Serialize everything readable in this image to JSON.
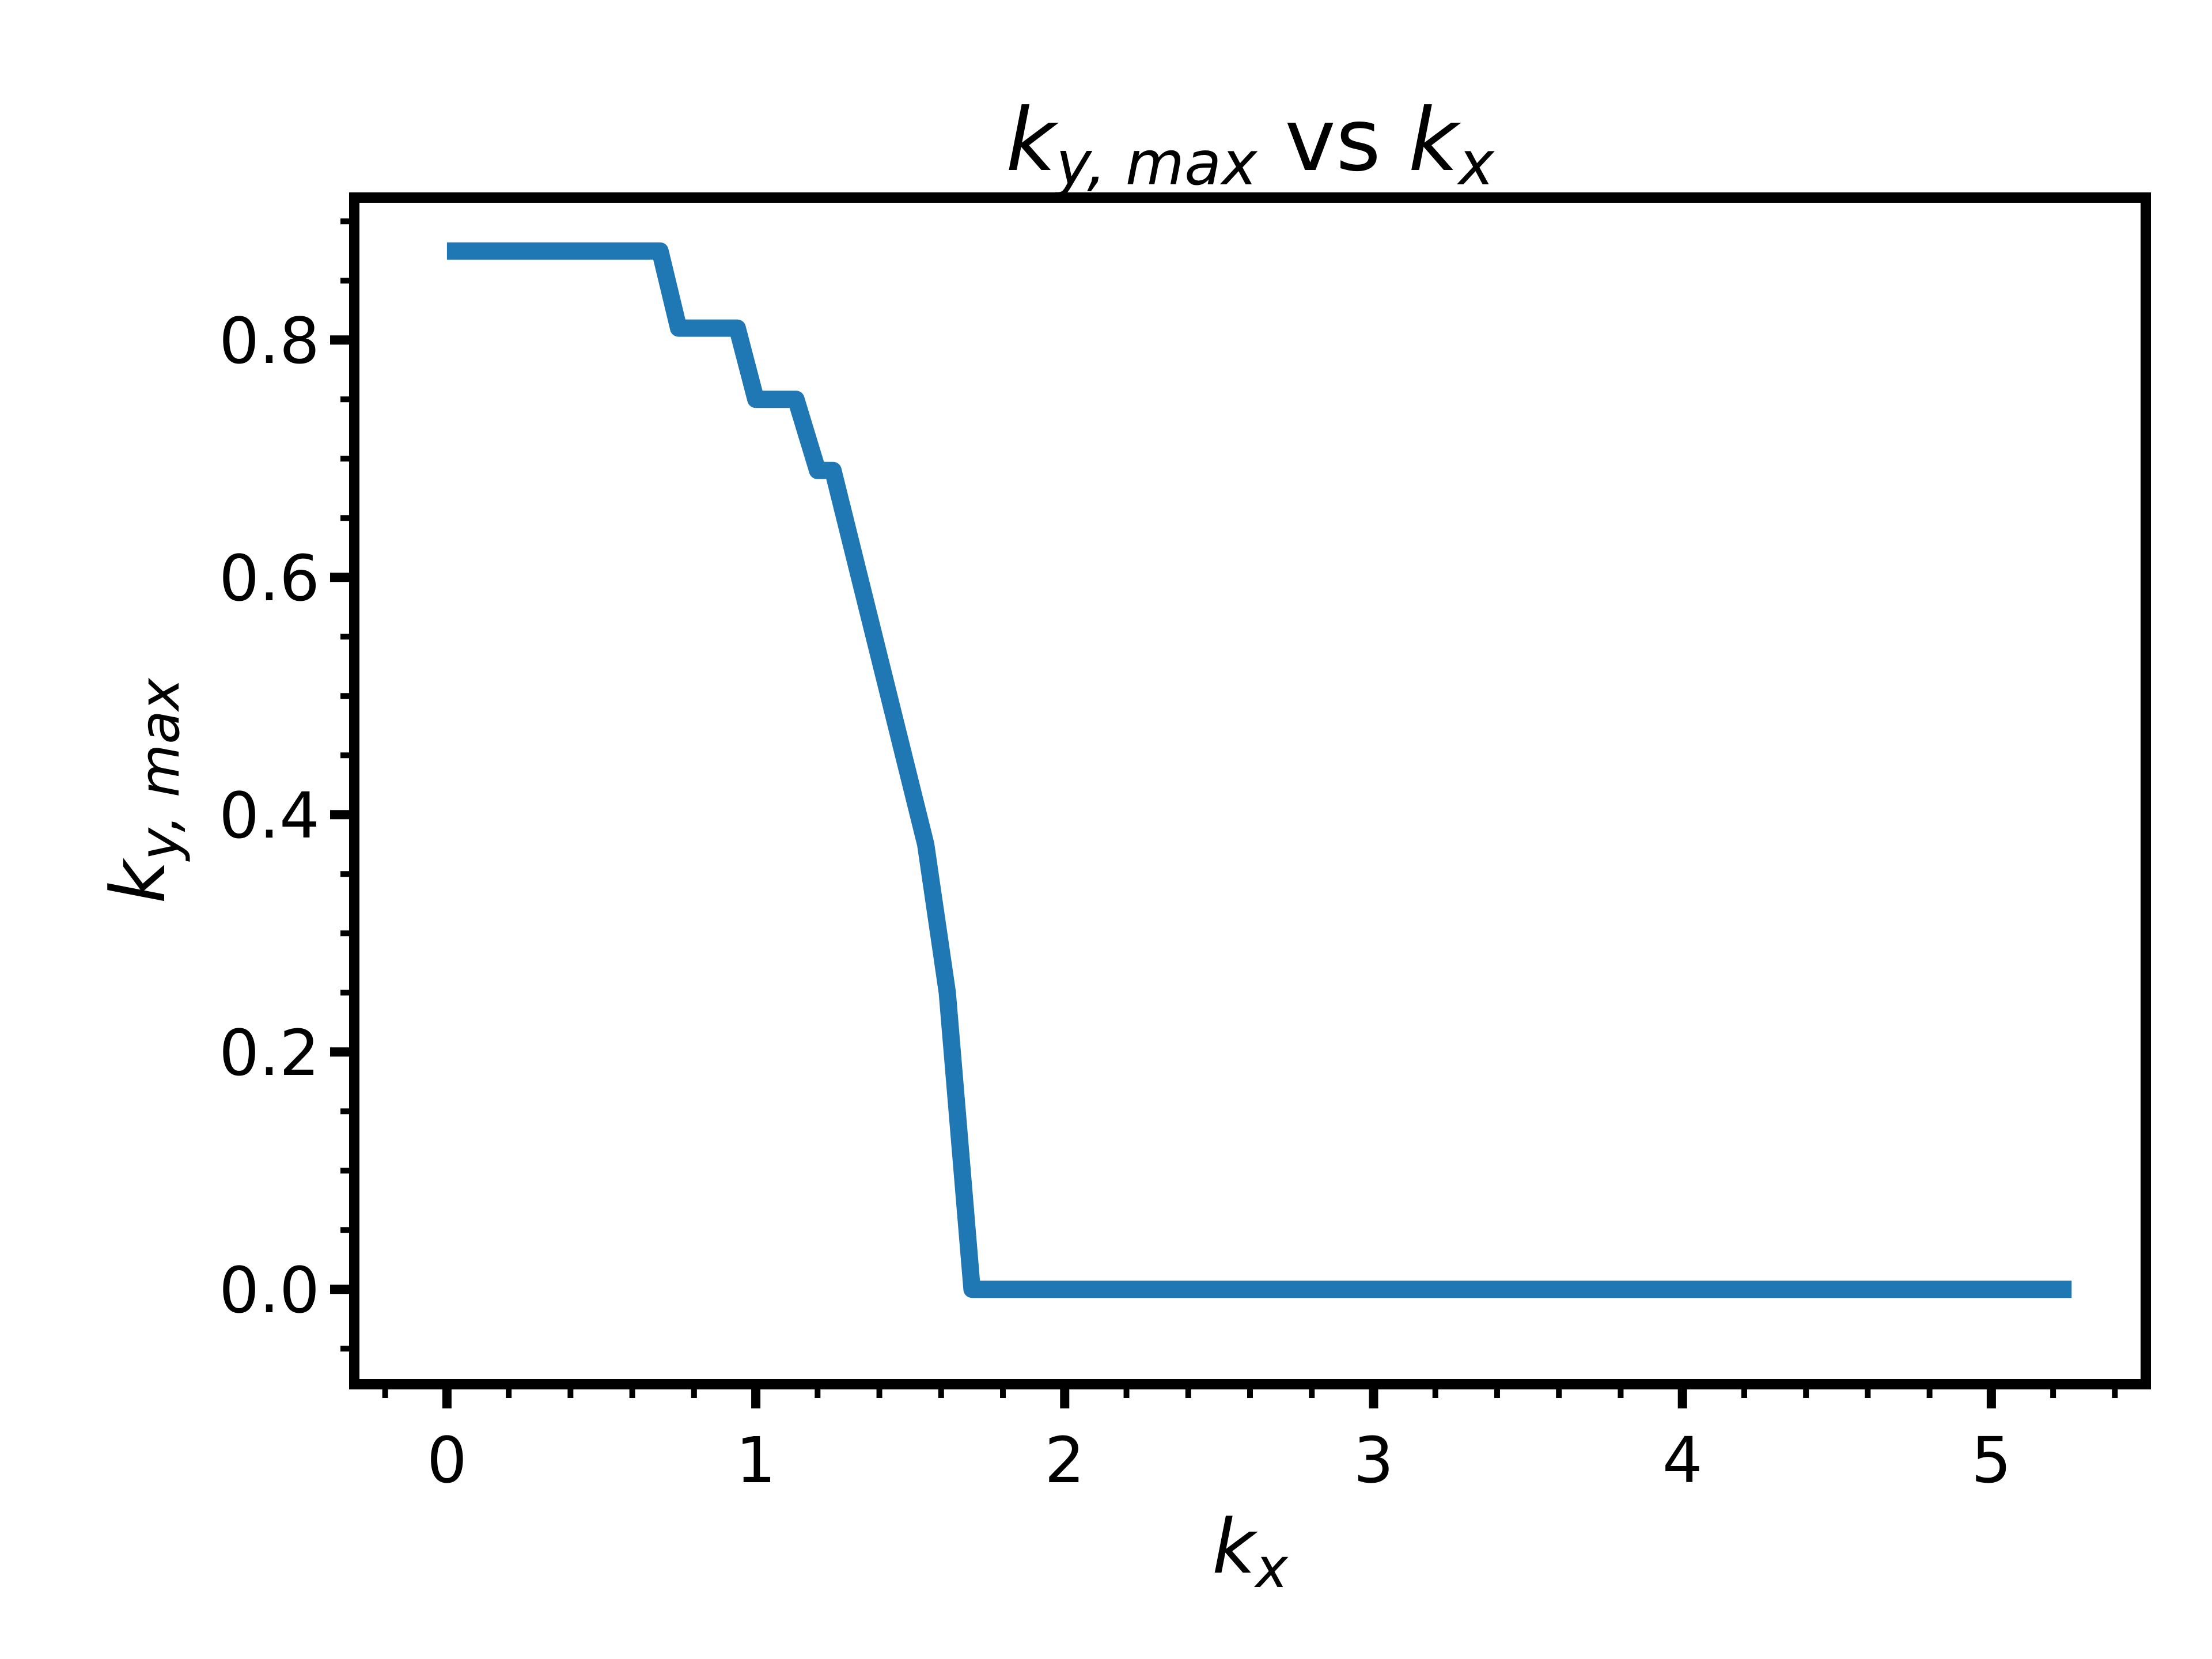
{
  "chart_data": {
    "type": "line",
    "title": {
      "a": "k",
      "a_sub": "y, max",
      "mid": " vs ",
      "b": "k",
      "b_sub": "x"
    },
    "xlabel": {
      "base": "k",
      "sub": "x"
    },
    "ylabel": {
      "base": "k",
      "sub": "y, max"
    },
    "xlim": [
      -0.3,
      5.5
    ],
    "ylim": [
      -0.08,
      0.92
    ],
    "xticks": [
      0,
      1,
      2,
      3,
      4,
      5
    ],
    "xtick_labels": [
      "0",
      "1",
      "2",
      "3",
      "4",
      "5"
    ],
    "yticks": [
      0.0,
      0.2,
      0.4,
      0.6,
      0.8
    ],
    "ytick_labels": [
      "0.0",
      "0.2",
      "0.4",
      "0.6",
      "0.8"
    ],
    "x_minor_step": 0.2,
    "y_minor_step": 0.05,
    "grid": false,
    "line_color": "#1f77b4",
    "series": [
      {
        "x": [
          0.0,
          0.69,
          0.75,
          0.94,
          1.0,
          1.13,
          1.2,
          1.25,
          1.55,
          1.62,
          1.7,
          5.26
        ],
        "y": [
          0.875,
          0.875,
          0.81,
          0.81,
          0.75,
          0.75,
          0.69,
          0.69,
          0.375,
          0.25,
          0.0,
          0.0
        ]
      }
    ]
  }
}
